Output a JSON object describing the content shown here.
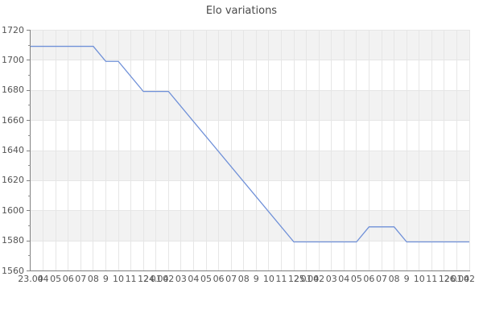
{
  "title": "Elo variations",
  "colors": {
    "line": "#6f90d8",
    "band_gray": "#f2f2f2",
    "band_white": "#ffffff",
    "gridline": "#e6e6e6",
    "axis": "#808080",
    "tick_text": "#555555",
    "title_text": "#4a4a4a"
  },
  "chart_data": {
    "type": "line",
    "title": "Elo variations",
    "xlabel": "",
    "ylabel": "",
    "legend": "none",
    "grid": "alternating horizontal bands every 20 Elo, vertical gridline per hour tick",
    "y_axis": {
      "min": 1560,
      "max": 1720,
      "major_step": 20,
      "minor_step": 10,
      "major_ticks": [
        1720,
        1700,
        1680,
        1660,
        1640,
        1620,
        1600,
        1580,
        1560
      ]
    },
    "x_axis": {
      "tick_count": 36,
      "ticks": [
        {
          "hour": "",
          "date": "23.04"
        },
        {
          "hour": "04",
          "date": ""
        },
        {
          "hour": "05",
          "date": ""
        },
        {
          "hour": "06",
          "date": ""
        },
        {
          "hour": "07",
          "date": ""
        },
        {
          "hour": "08",
          "date": ""
        },
        {
          "hour": "9",
          "date": ""
        },
        {
          "hour": "10",
          "date": ""
        },
        {
          "hour": "11",
          "date": ""
        },
        {
          "hour": "12",
          "date": ""
        },
        {
          "hour": "01",
          "date": "24.04"
        },
        {
          "hour": "02",
          "date": ""
        },
        {
          "hour": "03",
          "date": ""
        },
        {
          "hour": "04",
          "date": ""
        },
        {
          "hour": "05",
          "date": ""
        },
        {
          "hour": "06",
          "date": ""
        },
        {
          "hour": "07",
          "date": ""
        },
        {
          "hour": "08",
          "date": ""
        },
        {
          "hour": "9",
          "date": ""
        },
        {
          "hour": "10",
          "date": ""
        },
        {
          "hour": "11",
          "date": ""
        },
        {
          "hour": "12",
          "date": ""
        },
        {
          "hour": "01",
          "date": "25.04"
        },
        {
          "hour": "02",
          "date": ""
        },
        {
          "hour": "03",
          "date": ""
        },
        {
          "hour": "04",
          "date": ""
        },
        {
          "hour": "05",
          "date": ""
        },
        {
          "hour": "06",
          "date": ""
        },
        {
          "hour": "07",
          "date": ""
        },
        {
          "hour": "08",
          "date": ""
        },
        {
          "hour": "9",
          "date": ""
        },
        {
          "hour": "10",
          "date": ""
        },
        {
          "hour": "11",
          "date": ""
        },
        {
          "hour": "12",
          "date": ""
        },
        {
          "hour": "01",
          "date": "26.04"
        },
        {
          "hour": "02",
          "date": ""
        }
      ]
    },
    "series": [
      {
        "name": "Elo",
        "color": "#6f90d8",
        "points": [
          {
            "x": 0,
            "elo": 1709
          },
          {
            "x": 5,
            "elo": 1709
          },
          {
            "x": 6,
            "elo": 1699
          },
          {
            "x": 7,
            "elo": 1699
          },
          {
            "x": 9,
            "elo": 1679
          },
          {
            "x": 11,
            "elo": 1679
          },
          {
            "x": 21,
            "elo": 1579
          },
          {
            "x": 26,
            "elo": 1579
          },
          {
            "x": 27,
            "elo": 1589
          },
          {
            "x": 29,
            "elo": 1589
          },
          {
            "x": 30,
            "elo": 1579
          },
          {
            "x": 35,
            "elo": 1579
          }
        ]
      }
    ]
  }
}
